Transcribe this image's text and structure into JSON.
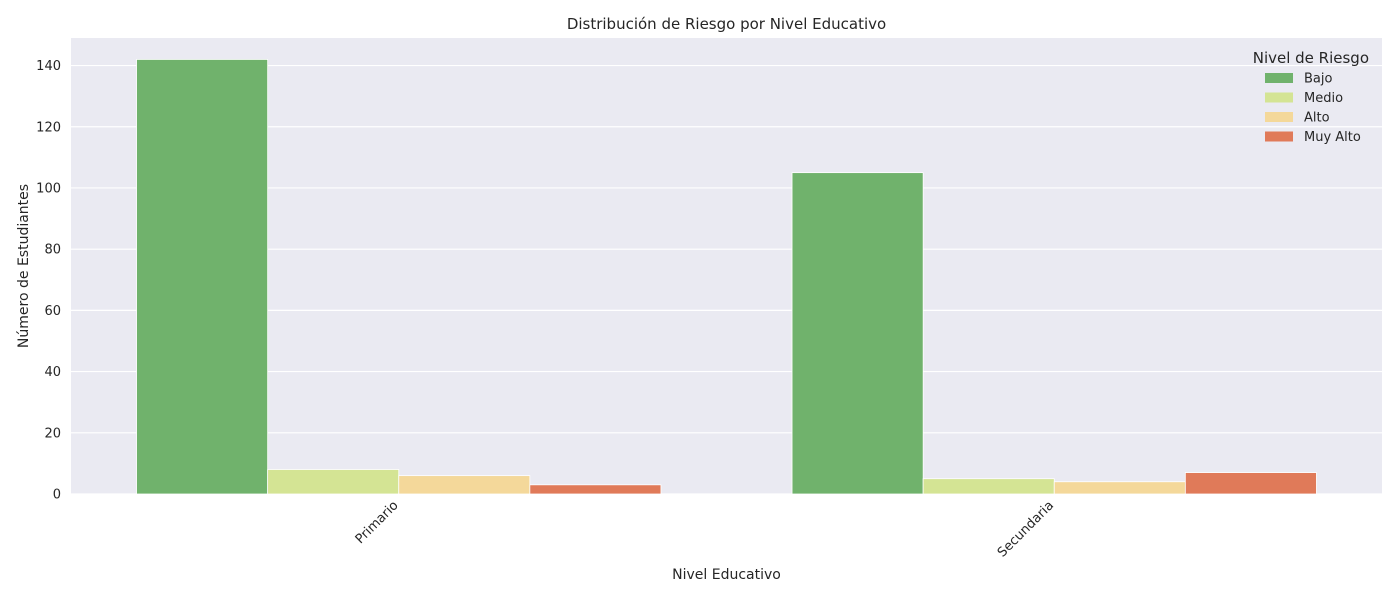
{
  "chart_data": {
    "type": "bar",
    "title": "Distribución de Riesgo por Nivel Educativo",
    "xlabel": "Nivel Educativo",
    "ylabel": "Número de Estudiantes",
    "categories": [
      "Primario",
      "Secundaria"
    ],
    "series": [
      {
        "name": "Bajo",
        "values": [
          142,
          105
        ],
        "color": "#70b26c"
      },
      {
        "name": "Medio",
        "values": [
          8,
          5
        ],
        "color": "#d4e494"
      },
      {
        "name": "Alto",
        "values": [
          6,
          4
        ],
        "color": "#f4d89a"
      },
      {
        "name": "Muy Alto",
        "values": [
          3,
          7
        ],
        "color": "#e07a59"
      }
    ],
    "ylim": [
      0,
      149
    ],
    "yticks": [
      0,
      20,
      40,
      60,
      80,
      100,
      120,
      140
    ],
    "grid": true,
    "legend": {
      "title": "Nivel de Riesgo",
      "placement": "top-right"
    },
    "plot_background": "#eaeaf2",
    "grid_color": "#ffffff"
  }
}
